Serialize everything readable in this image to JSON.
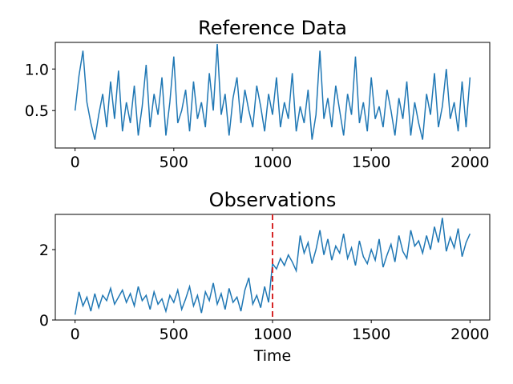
{
  "chart_data": [
    {
      "type": "line",
      "title": "Reference Data",
      "xlabel": "",
      "ylabel": "",
      "xlim": [
        -100,
        2100
      ],
      "ylim": [
        0.05,
        1.32
      ],
      "xticks": [
        0,
        500,
        1000,
        1500,
        2000
      ],
      "xtick_labels": [
        "0",
        "500",
        "1000",
        "1500",
        "2000"
      ],
      "yticks": [
        0.5,
        1.0
      ],
      "ytick_labels": [
        "0.5",
        "1.0"
      ],
      "grid": false,
      "color": "#1f77b4",
      "series": [
        {
          "x": [
            0,
            20,
            40,
            60,
            80,
            100,
            120,
            140,
            160,
            180,
            200,
            220,
            240,
            260,
            280,
            300,
            320,
            340,
            360,
            380,
            400,
            420,
            440,
            460,
            480,
            500,
            520,
            540,
            560,
            580,
            600,
            620,
            640,
            660,
            680,
            700,
            720,
            740,
            760,
            780,
            800,
            820,
            840,
            860,
            880,
            900,
            920,
            940,
            960,
            980,
            1000,
            1020,
            1040,
            1060,
            1080,
            1100,
            1120,
            1140,
            1160,
            1180,
            1200,
            1220,
            1240,
            1260,
            1280,
            1300,
            1320,
            1340,
            1360,
            1380,
            1400,
            1420,
            1440,
            1460,
            1480,
            1500,
            1520,
            1540,
            1560,
            1580,
            1600,
            1620,
            1640,
            1660,
            1680,
            1700,
            1720,
            1740,
            1760,
            1780,
            1800,
            1820,
            1840,
            1860,
            1880,
            1900,
            1920,
            1940,
            1960,
            1980,
            2000
          ],
          "values": [
            0.5,
            0.92,
            1.22,
            0.6,
            0.35,
            0.15,
            0.45,
            0.7,
            0.3,
            0.85,
            0.4,
            0.98,
            0.25,
            0.6,
            0.35,
            0.8,
            0.2,
            0.55,
            1.05,
            0.3,
            0.7,
            0.45,
            0.9,
            0.2,
            0.6,
            1.15,
            0.35,
            0.5,
            0.75,
            0.25,
            0.85,
            0.4,
            0.6,
            0.3,
            0.95,
            0.5,
            1.3,
            0.45,
            0.7,
            0.2,
            0.65,
            0.9,
            0.35,
            0.75,
            0.5,
            0.3,
            0.8,
            0.55,
            0.25,
            0.7,
            0.45,
            0.9,
            0.3,
            0.6,
            0.4,
            0.95,
            0.25,
            0.55,
            0.35,
            0.75,
            0.15,
            0.45,
            1.22,
            0.4,
            0.65,
            0.3,
            0.8,
            0.5,
            0.2,
            0.7,
            0.45,
            1.15,
            0.35,
            0.6,
            0.25,
            0.9,
            0.4,
            0.55,
            0.3,
            0.75,
            0.5,
            0.2,
            0.65,
            0.4,
            0.85,
            0.2,
            0.6,
            0.35,
            0.15,
            0.7,
            0.45,
            0.95,
            0.3,
            0.55,
            1.0,
            0.4,
            0.6,
            0.25,
            0.85,
            0.3,
            0.9
          ]
        }
      ]
    },
    {
      "type": "line",
      "title": "Observations",
      "xlabel": "Time",
      "ylabel": "",
      "xlim": [
        -100,
        2100
      ],
      "ylim": [
        0.0,
        3.0
      ],
      "xticks": [
        0,
        500,
        1000,
        1500,
        2000
      ],
      "xtick_labels": [
        "0",
        "500",
        "1000",
        "1500",
        "2000"
      ],
      "yticks": [
        0,
        2
      ],
      "ytick_labels": [
        "0",
        "2"
      ],
      "grid": false,
      "color": "#1f77b4",
      "vline": {
        "x": 1000,
        "color": "#d62728",
        "style": "dashed"
      },
      "series": [
        {
          "x": [
            0,
            20,
            40,
            60,
            80,
            100,
            120,
            140,
            160,
            180,
            200,
            220,
            240,
            260,
            280,
            300,
            320,
            340,
            360,
            380,
            400,
            420,
            440,
            460,
            480,
            500,
            520,
            540,
            560,
            580,
            600,
            620,
            640,
            660,
            680,
            700,
            720,
            740,
            760,
            780,
            800,
            820,
            840,
            860,
            880,
            900,
            920,
            940,
            960,
            980,
            1000,
            1020,
            1040,
            1060,
            1080,
            1100,
            1120,
            1140,
            1160,
            1180,
            1200,
            1220,
            1240,
            1260,
            1280,
            1300,
            1320,
            1340,
            1360,
            1380,
            1400,
            1420,
            1440,
            1460,
            1480,
            1500,
            1520,
            1540,
            1560,
            1580,
            1600,
            1620,
            1640,
            1660,
            1680,
            1700,
            1720,
            1740,
            1760,
            1780,
            1800,
            1820,
            1840,
            1860,
            1880,
            1900,
            1920,
            1940,
            1960,
            1980,
            2000
          ],
          "values": [
            0.15,
            0.8,
            0.4,
            0.65,
            0.25,
            0.75,
            0.35,
            0.7,
            0.55,
            0.9,
            0.45,
            0.65,
            0.85,
            0.5,
            0.75,
            0.4,
            0.95,
            0.55,
            0.7,
            0.3,
            0.8,
            0.45,
            0.6,
            0.25,
            0.7,
            0.5,
            0.85,
            0.3,
            0.6,
            0.95,
            0.4,
            0.7,
            0.2,
            0.8,
            0.55,
            1.05,
            0.45,
            0.75,
            0.3,
            0.9,
            0.5,
            0.65,
            0.25,
            0.85,
            1.2,
            0.45,
            0.7,
            0.35,
            0.95,
            0.5,
            1.6,
            1.45,
            1.75,
            1.55,
            1.85,
            1.65,
            1.4,
            2.4,
            1.9,
            2.2,
            1.6,
            2.0,
            2.55,
            1.85,
            2.3,
            1.7,
            2.1,
            1.9,
            2.45,
            1.75,
            2.05,
            1.55,
            2.25,
            1.8,
            1.6,
            2.0,
            1.7,
            2.3,
            1.5,
            1.85,
            2.15,
            1.65,
            2.4,
            1.95,
            1.75,
            2.55,
            2.1,
            2.25,
            1.9,
            2.4,
            2.0,
            2.65,
            2.2,
            2.9,
            1.95,
            2.35,
            2.05,
            2.6,
            1.8,
            2.2,
            2.45
          ]
        }
      ]
    }
  ]
}
